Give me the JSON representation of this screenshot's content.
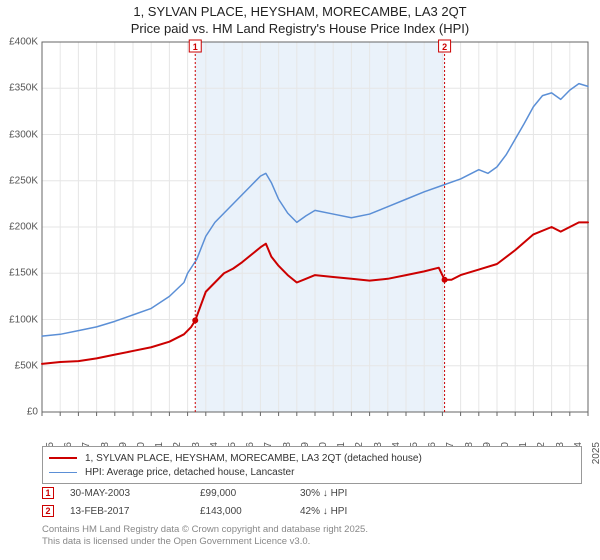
{
  "title": {
    "line1": "1, SYLVAN PLACE, HEYSHAM, MORECAMBE, LA3 2QT",
    "line2": "Price paid vs. HM Land Registry's House Price Index (HPI)"
  },
  "chart": {
    "type": "line",
    "background_color": "#ffffff",
    "grid_color": "#e6e6e6",
    "axis_color": "#666666",
    "tick_font_size": 10,
    "ylim": [
      0,
      400
    ],
    "ytick_step": 50,
    "ytick_prefix": "£",
    "ytick_suffix": "K",
    "xlim": [
      1995,
      2025
    ],
    "xticks": [
      1995,
      1996,
      1997,
      1998,
      1999,
      2000,
      2001,
      2002,
      2003,
      2004,
      2005,
      2006,
      2007,
      2008,
      2009,
      2010,
      2011,
      2012,
      2013,
      2014,
      2015,
      2016,
      2017,
      2018,
      2019,
      2020,
      2021,
      2022,
      2023,
      2024,
      2025
    ],
    "series": [
      {
        "id": "price_paid",
        "label": "1, SYLVAN PLACE, HEYSHAM, MORECAMBE, LA3 2QT (detached house)",
        "color": "#cc0000",
        "line_width": 2.0,
        "data": [
          [
            1995,
            52
          ],
          [
            1996,
            54
          ],
          [
            1997,
            55
          ],
          [
            1998,
            58
          ],
          [
            1999,
            62
          ],
          [
            2000,
            66
          ],
          [
            2001,
            70
          ],
          [
            2002,
            76
          ],
          [
            2002.8,
            84
          ],
          [
            2003.2,
            92
          ],
          [
            2003.42,
            99
          ],
          [
            2004,
            130
          ],
          [
            2004.5,
            140
          ],
          [
            2005,
            150
          ],
          [
            2005.5,
            155
          ],
          [
            2006,
            162
          ],
          [
            2006.5,
            170
          ],
          [
            2007,
            178
          ],
          [
            2007.3,
            182
          ],
          [
            2007.6,
            168
          ],
          [
            2008,
            158
          ],
          [
            2008.5,
            148
          ],
          [
            2009,
            140
          ],
          [
            2009.5,
            144
          ],
          [
            2010,
            148
          ],
          [
            2011,
            146
          ],
          [
            2012,
            144
          ],
          [
            2013,
            142
          ],
          [
            2014,
            144
          ],
          [
            2015,
            148
          ],
          [
            2016,
            152
          ],
          [
            2016.8,
            156
          ],
          [
            2017.12,
            143
          ],
          [
            2017.5,
            143
          ],
          [
            2018,
            148
          ],
          [
            2019,
            154
          ],
          [
            2020,
            160
          ],
          [
            2021,
            175
          ],
          [
            2022,
            192
          ],
          [
            2023,
            200
          ],
          [
            2023.5,
            195
          ],
          [
            2024,
            200
          ],
          [
            2024.5,
            205
          ],
          [
            2025,
            205
          ]
        ]
      },
      {
        "id": "hpi",
        "label": "HPI: Average price, detached house, Lancaster",
        "color": "#5b8fd6",
        "line_width": 1.5,
        "data": [
          [
            1995,
            82
          ],
          [
            1996,
            84
          ],
          [
            1997,
            88
          ],
          [
            1998,
            92
          ],
          [
            1999,
            98
          ],
          [
            2000,
            105
          ],
          [
            2001,
            112
          ],
          [
            2002,
            125
          ],
          [
            2002.8,
            140
          ],
          [
            2003,
            150
          ],
          [
            2003.5,
            165
          ],
          [
            2004,
            190
          ],
          [
            2004.5,
            205
          ],
          [
            2005,
            215
          ],
          [
            2005.5,
            225
          ],
          [
            2006,
            235
          ],
          [
            2006.5,
            245
          ],
          [
            2007,
            255
          ],
          [
            2007.3,
            258
          ],
          [
            2007.6,
            248
          ],
          [
            2008,
            230
          ],
          [
            2008.5,
            215
          ],
          [
            2009,
            205
          ],
          [
            2009.5,
            212
          ],
          [
            2010,
            218
          ],
          [
            2011,
            214
          ],
          [
            2012,
            210
          ],
          [
            2013,
            214
          ],
          [
            2014,
            222
          ],
          [
            2015,
            230
          ],
          [
            2016,
            238
          ],
          [
            2017,
            245
          ],
          [
            2018,
            252
          ],
          [
            2019,
            262
          ],
          [
            2019.5,
            258
          ],
          [
            2020,
            265
          ],
          [
            2020.5,
            278
          ],
          [
            2021,
            295
          ],
          [
            2021.5,
            312
          ],
          [
            2022,
            330
          ],
          [
            2022.5,
            342
          ],
          [
            2023,
            345
          ],
          [
            2023.5,
            338
          ],
          [
            2024,
            348
          ],
          [
            2024.5,
            355
          ],
          [
            2025,
            352
          ]
        ]
      }
    ],
    "shaded_region": {
      "x_start": 2003.42,
      "x_end": 2017.12,
      "color": "#d6e6f5",
      "opacity": 0.5
    },
    "sale_markers": [
      {
        "num": "1",
        "x": 2003.42,
        "y": 99,
        "color": "#cc0000"
      },
      {
        "num": "2",
        "x": 2017.12,
        "y": 143,
        "color": "#cc0000"
      }
    ]
  },
  "legend": {
    "border_color": "#999999",
    "font_size": 10,
    "items": [
      {
        "color": "#cc0000",
        "line_width": 2.0,
        "label": "1, SYLVAN PLACE, HEYSHAM, MORECAMBE, LA3 2QT (detached house)"
      },
      {
        "color": "#5b8fd6",
        "line_width": 1.5,
        "label": "HPI: Average price, detached house, Lancaster"
      }
    ]
  },
  "markers": [
    {
      "num": "1",
      "date": "30-MAY-2003",
      "price": "£99,000",
      "pct": "30% ↓ HPI",
      "color": "#cc0000"
    },
    {
      "num": "2",
      "date": "13-FEB-2017",
      "price": "£143,000",
      "pct": "42% ↓ HPI",
      "color": "#cc0000"
    }
  ],
  "footer": {
    "line1": "Contains HM Land Registry data © Crown copyright and database right 2025.",
    "line2": "This data is licensed under the Open Government Licence v3.0."
  }
}
